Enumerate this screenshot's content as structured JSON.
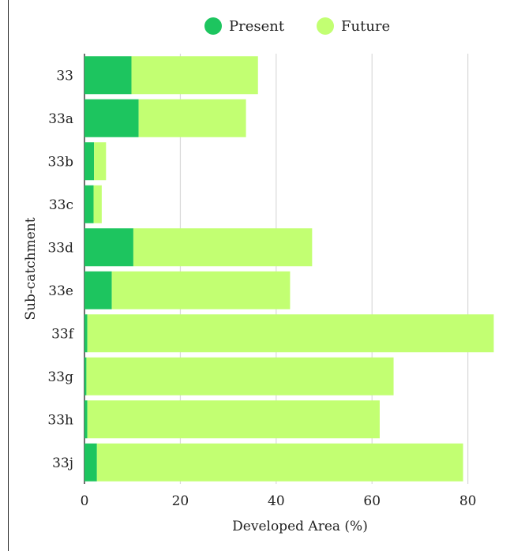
{
  "chart_data": {
    "type": "bar",
    "orientation": "horizontal",
    "stacked": true,
    "categories": [
      "33",
      "33a",
      "33b",
      "33c",
      "33d",
      "33e",
      "33f",
      "33g",
      "33h",
      "33j"
    ],
    "series": [
      {
        "name": "Present",
        "color": "#1dc55f",
        "values": [
          9.8,
          11.3,
          2.0,
          1.9,
          10.2,
          5.7,
          0.6,
          0.4,
          0.6,
          2.6
        ]
      },
      {
        "name": "Future",
        "color": "#c2ff72",
        "values": [
          26.4,
          22.4,
          2.5,
          1.7,
          37.3,
          37.2,
          84.8,
          64.1,
          61.0,
          76.4
        ]
      }
    ],
    "xlabel": "Developed Area (%)",
    "ylabel": "Sub-catchment",
    "xlim": [
      0,
      85
    ],
    "xticks": [
      0,
      20,
      40,
      60,
      80
    ],
    "xtick_labels": [
      "0",
      "20",
      "40",
      "60",
      "80"
    ],
    "grid": "vertical",
    "legend": "top"
  }
}
